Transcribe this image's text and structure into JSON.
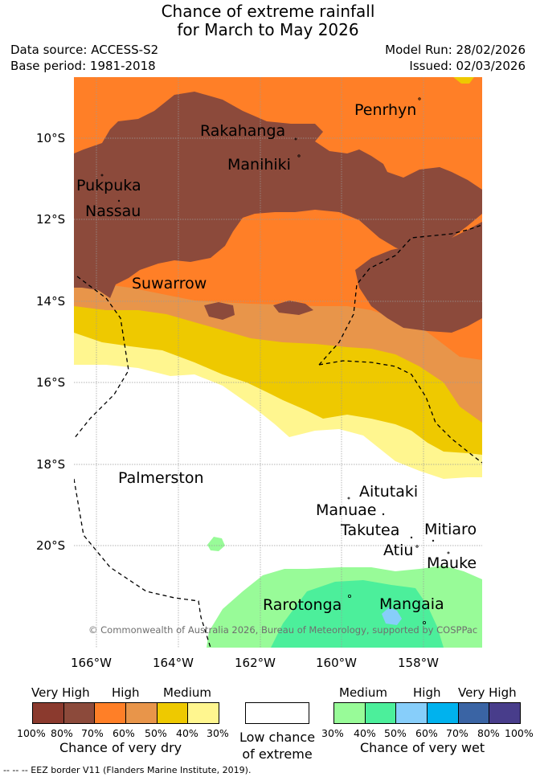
{
  "header": {
    "title_line1": "Chance of extreme rainfall",
    "title_line2": "for March to May 2026",
    "data_source": "Data source: ACCESS-S2",
    "base_period": "Base period: 1981-2018",
    "model_run": "Model Run: 28/02/2026",
    "issued": "Issued: 02/03/2026"
  },
  "map": {
    "lat_labels": [
      "10°S",
      "12°S",
      "14°S",
      "16°S",
      "18°S",
      "20°S"
    ],
    "lon_labels": [
      "166°W",
      "164°W",
      "162°W",
      "160°W",
      "158°W"
    ],
    "places": {
      "penrhyn": "Penrhyn",
      "rakahanga": "Rakahanga",
      "manihiki": "Manihiki",
      "pukapuka": "Pukpuka",
      "nassau": "Nassau",
      "suwarrow": "Suwarrow",
      "palmerston": "Palmerston",
      "aitutaki": "Aitutaki",
      "manuae": "Manuae",
      "takutea": "Takutea",
      "mitiaro": "Mitiaro",
      "atiu": "Atiu",
      "mauke": "Mauke",
      "rarotonga": "Rarotonga",
      "mangaia": "Mangaia"
    },
    "copyright": "© Commonwealth of Australia 2026, Bureau of Meteorology, supported by COSPPac"
  },
  "colors": {
    "dry_very_high_100": "#8b3a2e",
    "dry_very_high_80": "#8c4a3b",
    "dry_high_70": "#ff7f27",
    "dry_high_60": "#e8954a",
    "dry_medium_50": "#eec900",
    "dry_medium_40": "#fff68f",
    "no_chance": "#ffffff",
    "wet_medium_30": "#98fb98",
    "wet_medium_40": "#4cef9b",
    "wet_high_50": "#87cefa",
    "wet_high_60": "#00b2ee",
    "wet_very_high_70": "#3a64a4",
    "wet_very_high_80": "#483d8b"
  },
  "legend": {
    "dry": {
      "headers": [
        "Very High",
        "High",
        "Medium"
      ],
      "percents": [
        "100%",
        "80%",
        "70%",
        "60%",
        "50%",
        "40%",
        "30%"
      ],
      "caption": "Chance of very dry"
    },
    "none": {
      "caption_line1": "Low chance",
      "caption_line2": "of extreme"
    },
    "wet": {
      "headers": [
        "Medium",
        "High",
        "Very High"
      ],
      "percents": [
        "30%",
        "40%",
        "50%",
        "60%",
        "70%",
        "80%",
        "100%"
      ],
      "caption": "Chance of very wet"
    }
  },
  "footnote": "--  --  -- EEZ border V11 (Flanders Marine Institute, 2019)."
}
